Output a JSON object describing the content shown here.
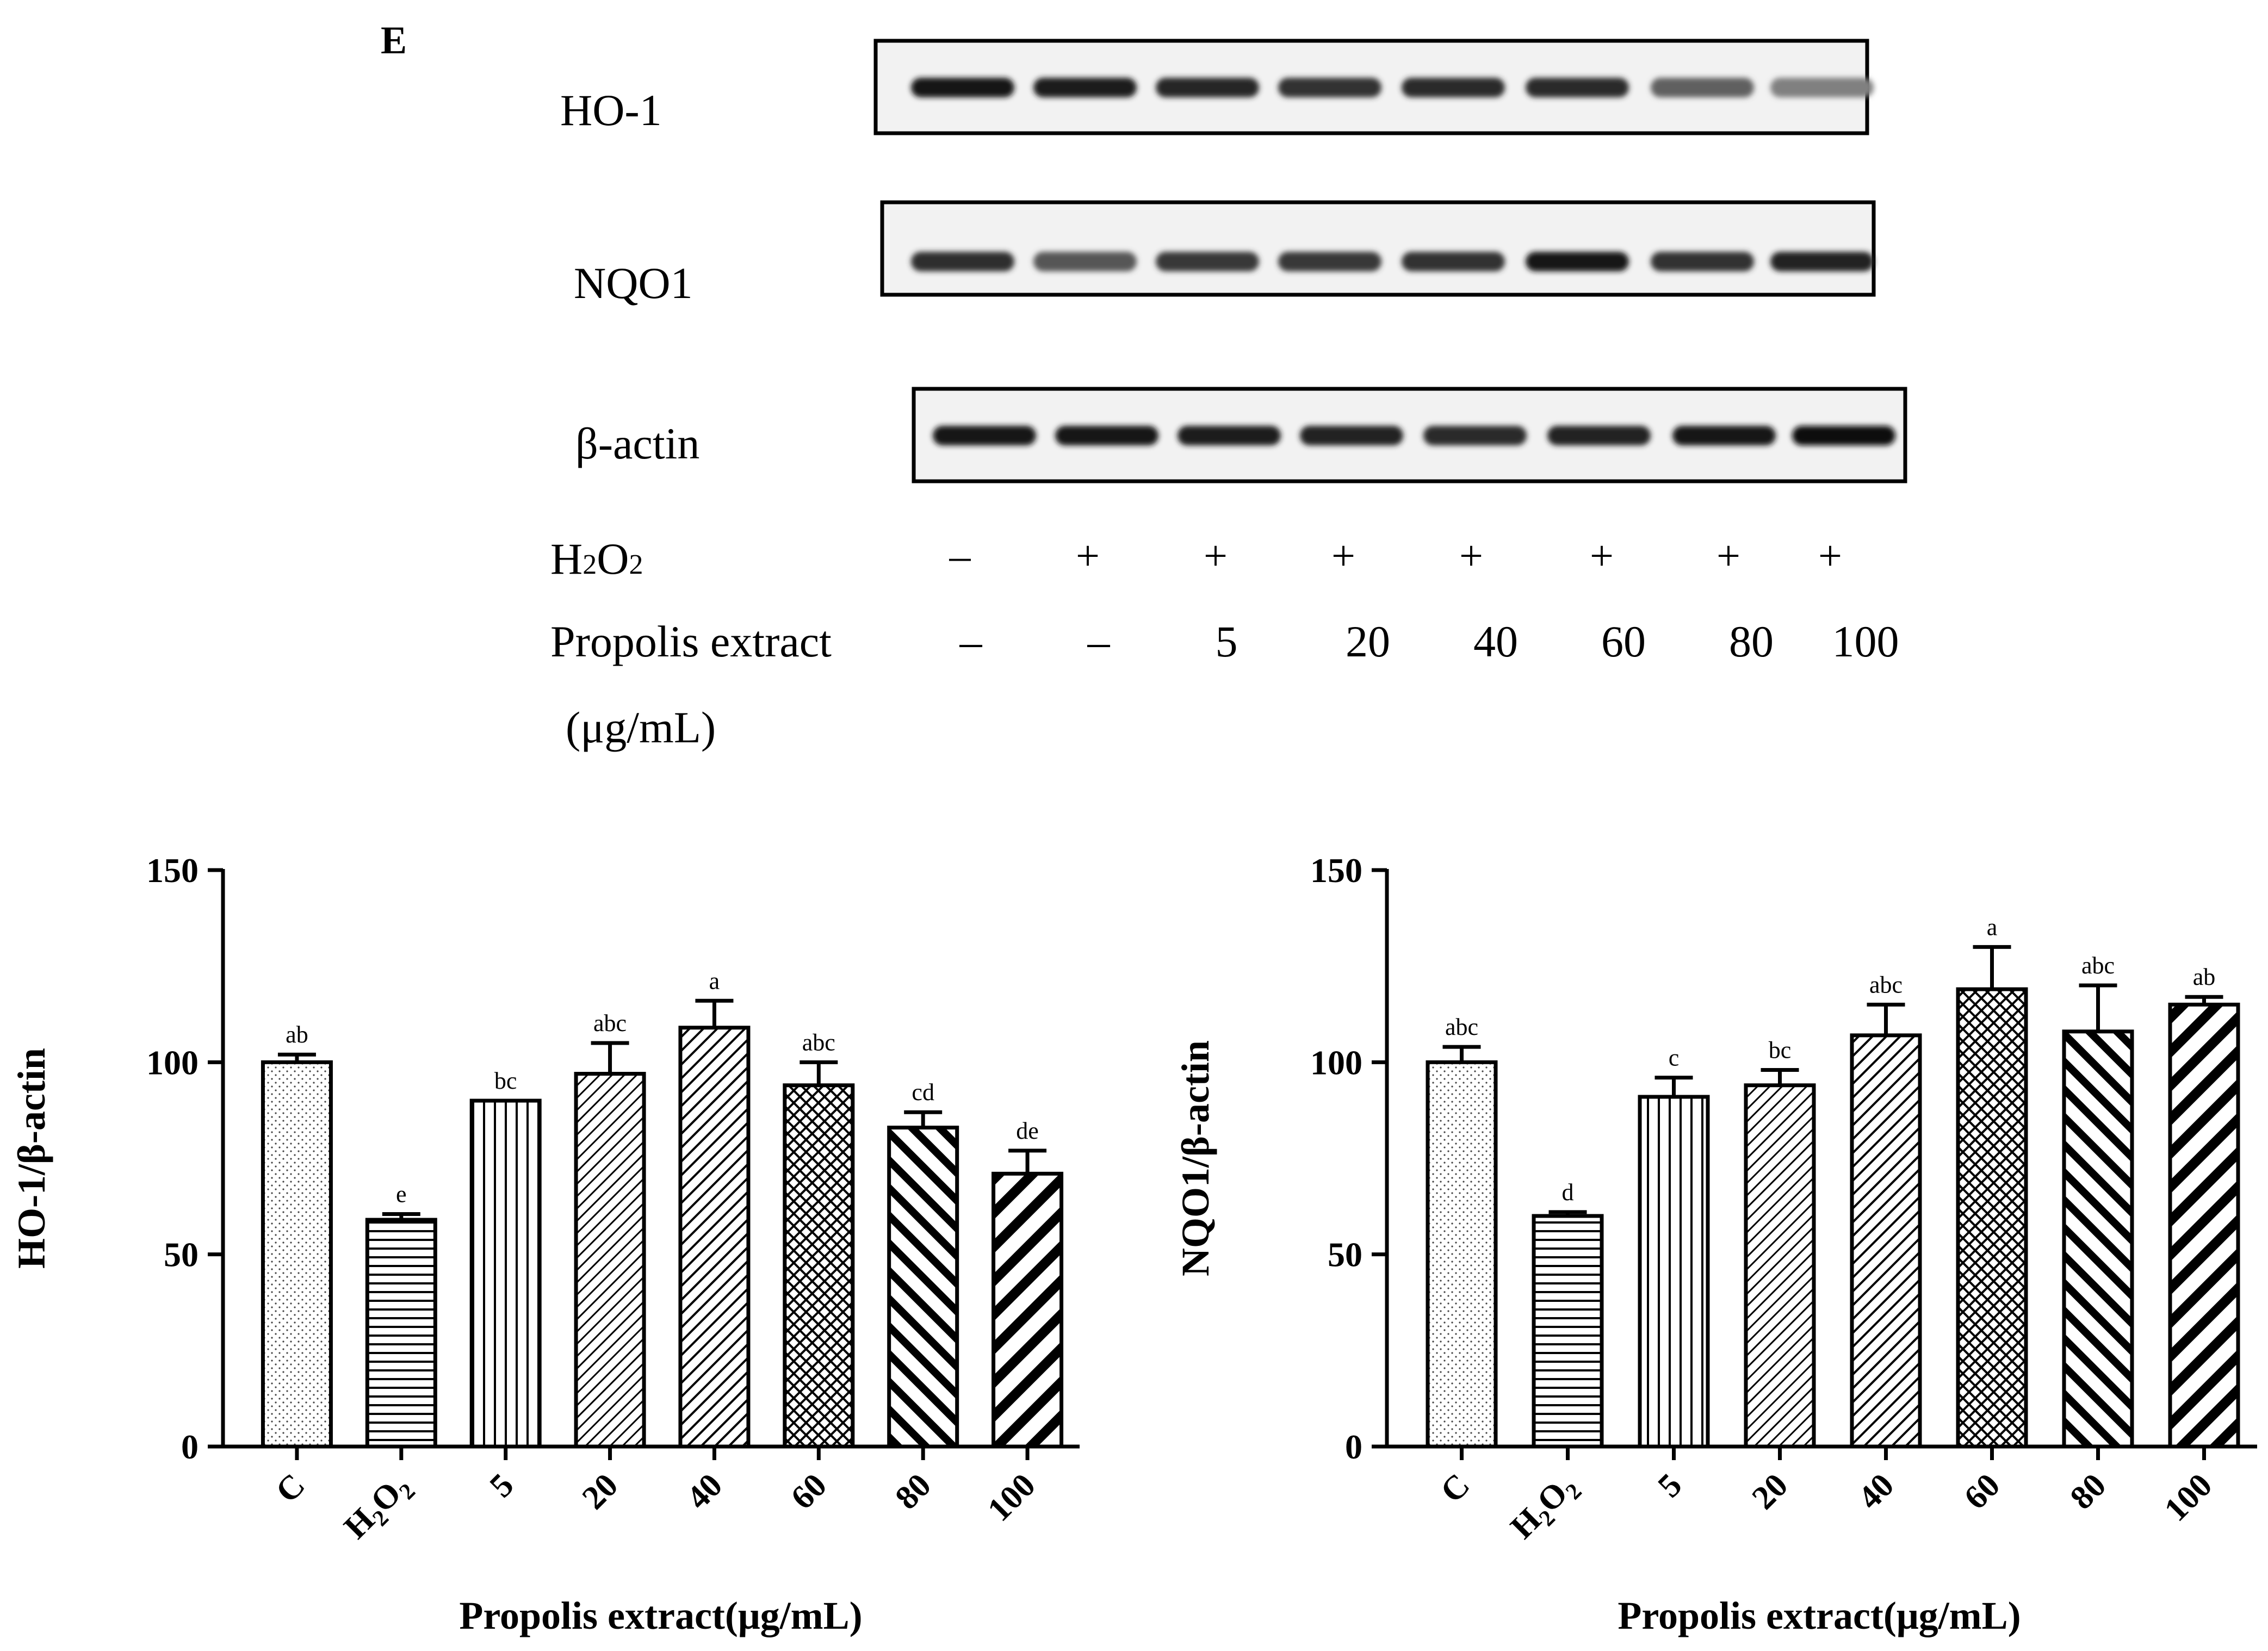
{
  "panel_label": "E",
  "blot": {
    "rows": [
      {
        "name": "HO-1",
        "intensity": [
          0.92,
          0.88,
          0.85,
          0.8,
          0.83,
          0.83,
          0.62,
          0.5
        ]
      },
      {
        "name": "NQO1",
        "intensity": [
          0.82,
          0.66,
          0.78,
          0.78,
          0.8,
          0.9,
          0.8,
          0.86
        ]
      },
      {
        "name": "β-actin",
        "intensity": [
          0.92,
          0.92,
          0.88,
          0.86,
          0.84,
          0.86,
          0.9,
          0.95
        ]
      }
    ],
    "h2o2_label_main": "H",
    "h2o2_sub1": "2",
    "h2o2_mid": "O",
    "h2o2_sub2": "2",
    "h2o2_values": [
      "–",
      "+",
      "+",
      "+",
      "+",
      "+",
      "+",
      "+"
    ],
    "propolis_label": "Propolis extract",
    "propolis_unit": "(μg/mL)",
    "propolis_values": [
      "–",
      "–",
      "5",
      "20",
      "40",
      "60",
      "80",
      "100"
    ]
  },
  "chart_data": [
    {
      "type": "bar",
      "title": "",
      "ylabel": "HO-1/β-actin",
      "xlabel": "Propolis extract(μg/mL)",
      "ylim": [
        0,
        150
      ],
      "yticks": [
        "0",
        "50",
        "100",
        "150"
      ],
      "categories": [
        "C",
        "H2O2",
        "5",
        "20",
        "40",
        "60",
        "80",
        "100"
      ],
      "values": [
        100,
        59,
        90,
        97,
        109,
        94,
        83,
        71
      ],
      "errors": [
        2,
        1.5,
        0,
        8,
        7,
        6,
        4,
        6
      ],
      "letters": [
        "ab",
        "e",
        "bc",
        "abc",
        "a",
        "abc",
        "cd",
        "de"
      ],
      "patterns": [
        "dots",
        "horizontal",
        "vertical",
        "diag-fine",
        "diag-medium",
        "crosshatch",
        "diag-thick",
        "diag-thicker"
      ]
    },
    {
      "type": "bar",
      "title": "",
      "ylabel": "NQO1/β-actin",
      "xlabel": "Propolis extract(μg/mL)",
      "ylim": [
        0,
        150
      ],
      "yticks": [
        "0",
        "50",
        "100",
        "150"
      ],
      "categories": [
        "C",
        "H2O2",
        "5",
        "20",
        "40",
        "60",
        "80",
        "100"
      ],
      "values": [
        100,
        60,
        91,
        94,
        107,
        119,
        108,
        115
      ],
      "errors": [
        4,
        1,
        5,
        4,
        8,
        11,
        12,
        2
      ],
      "letters": [
        "abc",
        "d",
        "c",
        "bc",
        "abc",
        "a",
        "abc",
        "ab"
      ],
      "patterns": [
        "dots",
        "horizontal",
        "vertical",
        "diag-fine",
        "diag-medium",
        "crosshatch",
        "diag-thick",
        "diag-thicker"
      ]
    }
  ]
}
